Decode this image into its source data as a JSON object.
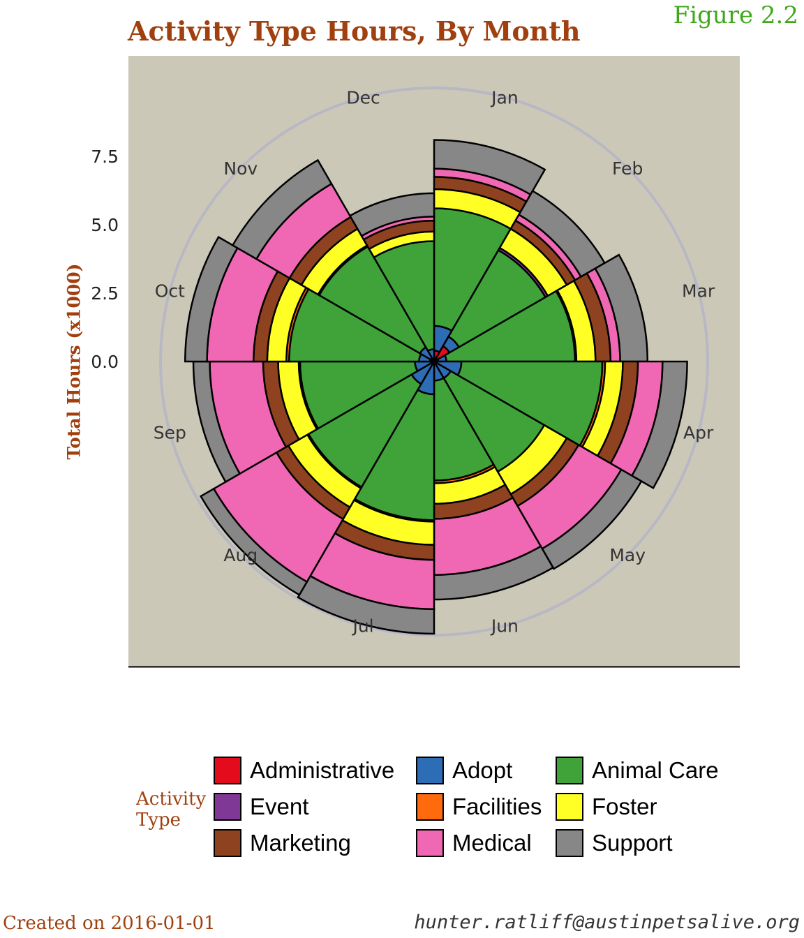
{
  "title": "Activity Type Hours, By Month",
  "figure_label": "Figure 2.2",
  "footer": {
    "created": "Created on 2016-01-01",
    "email": "hunter.ratliff@austinpetsalive.org"
  },
  "legend": {
    "title": "Activity Type",
    "items": [
      {
        "label": "Administrative",
        "color": "#e30b1c"
      },
      {
        "label": "Adopt",
        "color": "#2d6db5"
      },
      {
        "label": "Animal Care",
        "color": "#3fa33a"
      },
      {
        "label": "Event",
        "color": "#7f3895"
      },
      {
        "label": "Facilities",
        "color": "#ff6a0c"
      },
      {
        "label": "Foster",
        "color": "#ffff26"
      },
      {
        "label": "Marketing",
        "color": "#8f4220"
      },
      {
        "label": "Medical",
        "color": "#f068b4"
      },
      {
        "label": "Support",
        "color": "#878787"
      }
    ]
  },
  "chart_data": {
    "type": "polar-stacked-bar",
    "title": "Activity Type Hours, By Month",
    "ylabel": "Total Hours (x1000)",
    "y_ticks": [
      "7.5",
      "5.0",
      "2.5",
      "0.0"
    ],
    "y_tick_values": [
      7.5,
      5.0,
      2.5,
      0.0
    ],
    "ylim": [
      0,
      10
    ],
    "grid_circles": [
      5,
      10
    ],
    "legend_position": "bottom",
    "categories": [
      "Jan",
      "Feb",
      "Mar",
      "Apr",
      "May",
      "Jun",
      "Jul",
      "Aug",
      "Sep",
      "Oct",
      "Nov",
      "Dec"
    ],
    "series": [
      {
        "name": "Administrative",
        "color": "#e30b1c",
        "values": [
          0.4,
          0.65,
          0.15,
          0.1,
          0.1,
          0.1,
          0.1,
          0.1,
          0.1,
          0.15,
          0.15,
          0.1
        ]
      },
      {
        "name": "Adopt",
        "color": "#2d6db5",
        "values": [
          0.9,
          0.4,
          0.3,
          0.9,
          0.6,
          0.6,
          1.1,
          0.85,
          0.6,
          0.4,
          0.45,
          0.35
        ]
      },
      {
        "name": "Animal Care",
        "color": "#3fa33a",
        "values": [
          4.3,
          3.65,
          4.7,
          5.15,
          3.95,
          3.65,
          4.6,
          4.35,
          4.2,
          4.75,
          4.25,
          3.95
        ]
      },
      {
        "name": "Event",
        "color": "#7f3895",
        "values": [
          0.0,
          0.1,
          0.0,
          0.0,
          0.0,
          0.0,
          0.0,
          0.0,
          0.0,
          0.0,
          0.0,
          0.0
        ]
      },
      {
        "name": "Facilities",
        "color": "#ff6a0c",
        "values": [
          0.0,
          0.0,
          0.05,
          0.1,
          0.0,
          0.1,
          0.05,
          0.05,
          0.05,
          0.1,
          0.05,
          0.0
        ]
      },
      {
        "name": "Foster",
        "color": "#ffff26",
        "values": [
          0.7,
          0.8,
          0.7,
          0.65,
          0.95,
          0.75,
          0.85,
          0.8,
          0.75,
          0.7,
          0.7,
          0.35
        ]
      },
      {
        "name": "Marketing",
        "color": "#8f4220",
        "values": [
          0.45,
          0.35,
          0.55,
          0.55,
          0.5,
          0.55,
          0.55,
          0.5,
          0.55,
          0.5,
          0.5,
          0.4
        ]
      },
      {
        "name": "Medical",
        "color": "#f068b4",
        "values": [
          0.3,
          0.25,
          0.35,
          0.9,
          1.8,
          2.05,
          1.8,
          2.65,
          1.95,
          1.7,
          1.4,
          0.15
        ]
      },
      {
        "name": "Support",
        "color": "#878787",
        "values": [
          1.05,
          1.0,
          1.0,
          0.9,
          0.85,
          0.9,
          0.9,
          0.55,
          0.6,
          0.8,
          1.0,
          0.85
        ]
      }
    ]
  }
}
